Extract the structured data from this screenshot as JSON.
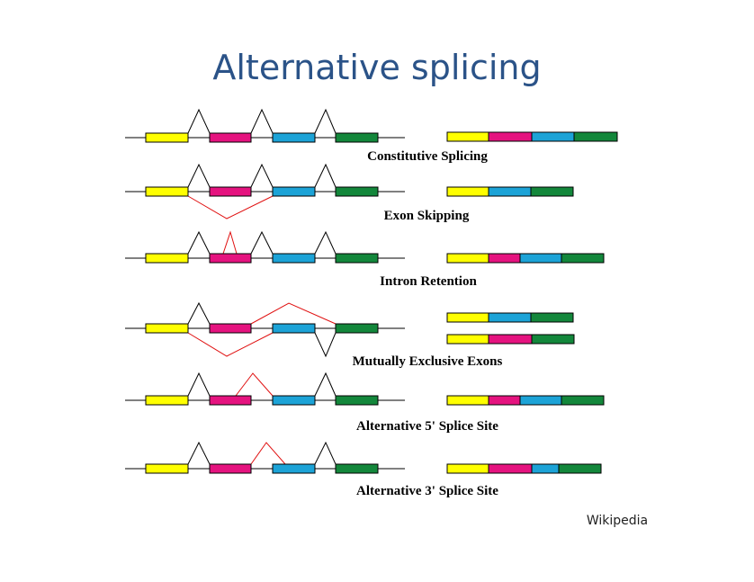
{
  "title": "Alternative splicing",
  "diagrams": [
    {
      "label": "Constitutive Splicing"
    },
    {
      "label": "Exon Skipping"
    },
    {
      "label": "Intron Retention"
    },
    {
      "label": "Mutually Exclusive Exons"
    },
    {
      "label": "Alternative 5' Splice Site"
    },
    {
      "label": "Alternative 3' Splice Site"
    }
  ],
  "credit": "Wikipedia"
}
